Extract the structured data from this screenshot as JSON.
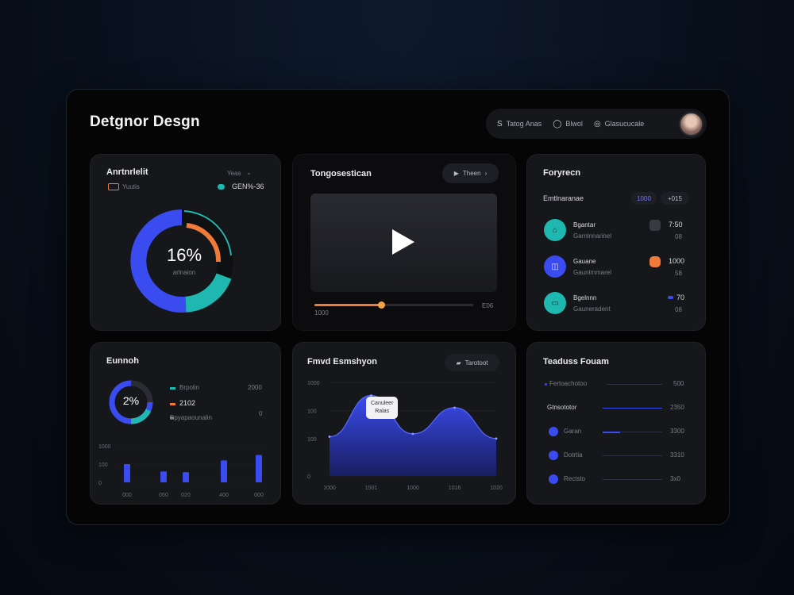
{
  "app": {
    "title": "Detgnor Desgn"
  },
  "topbar": {
    "items": [
      {
        "icon": "search-icon",
        "glyph": "S",
        "label": "Tatog Anas"
      },
      {
        "icon": "bell-icon",
        "glyph": "◯",
        "label": "Blwol"
      },
      {
        "icon": "settings-icon",
        "glyph": "◎",
        "label": "Glasucucale"
      }
    ]
  },
  "card_analytics": {
    "title": "Anrtnrlelit",
    "filter": "Yeas",
    "legend_left": "Yuutis",
    "legend_right_value": "GEN%-36",
    "donut_value": "16%",
    "donut_sub": "arlnaion"
  },
  "card_video": {
    "title": "Tongosestican",
    "button_label": "Theen",
    "time_start": "1000",
    "time_end": "E06",
    "progress": 0.42
  },
  "card_list": {
    "title": "Foryrecn",
    "subtitle": "Emtlnaranae",
    "chip1": "1000",
    "chip2": "+015",
    "items": [
      {
        "name": "Bgantar",
        "sub": "Garnlnnarinel",
        "value": "7:50",
        "sub_value": "08"
      },
      {
        "name": "Gauane",
        "sub": "Gaunlmmarel",
        "value": "1000",
        "sub_value": "58"
      },
      {
        "name": "Bgelnnn",
        "sub": "Gauneradent",
        "value": "70",
        "sub_value": "08"
      }
    ]
  },
  "card_summary": {
    "title": "Eunnoh",
    "donut_value": "2%",
    "legend": [
      {
        "label": "Brpolin",
        "value": "2000"
      },
      {
        "label": "2102",
        "value": ""
      },
      {
        "label": "Epyapaounalin",
        "value": "0"
      }
    ],
    "y_ticks": [
      "1000",
      "100",
      "0"
    ],
    "categories": [
      "000",
      "050",
      "020",
      "400",
      "000"
    ]
  },
  "card_area": {
    "title": "Fmvd Esmshyon",
    "button_label": "Tarotoot",
    "tooltip_line1": "Canuleer",
    "tooltip_line2": "Ralas",
    "y_ticks": [
      "1000",
      "100",
      "100",
      "0"
    ],
    "x_ticks": [
      "1000",
      "1501",
      "1000",
      "1016",
      "1020"
    ]
  },
  "card_ranking": {
    "title": "Teaduss Fouam",
    "rows": [
      {
        "label": "Fertoachotoo",
        "value": "500"
      },
      {
        "label": "Gtnsototor",
        "value": "2350"
      },
      {
        "label": "Garan",
        "value": "3300"
      },
      {
        "label": "Dotrtia",
        "value": "3310"
      },
      {
        "label": "Rectsto",
        "value": "3x0"
      }
    ]
  },
  "chart_data": [
    {
      "type": "bar",
      "title": "Eunnoh",
      "categories": [
        "000",
        "050",
        "020",
        "400",
        "000"
      ],
      "values": [
        500,
        300,
        280,
        600,
        750
      ],
      "ylim": [
        0,
        1000
      ]
    },
    {
      "type": "area",
      "title": "Fmvd Esmshyon",
      "x": [
        "1000",
        "1501",
        "1000",
        "1016",
        "1020"
      ],
      "values": [
        420,
        860,
        450,
        730,
        400
      ],
      "ylim": [
        0,
        1000
      ]
    }
  ],
  "colors": {
    "accent_blue": "#3a4cf0",
    "accent_teal": "#1fb8b0",
    "accent_orange": "#f07a3a"
  }
}
